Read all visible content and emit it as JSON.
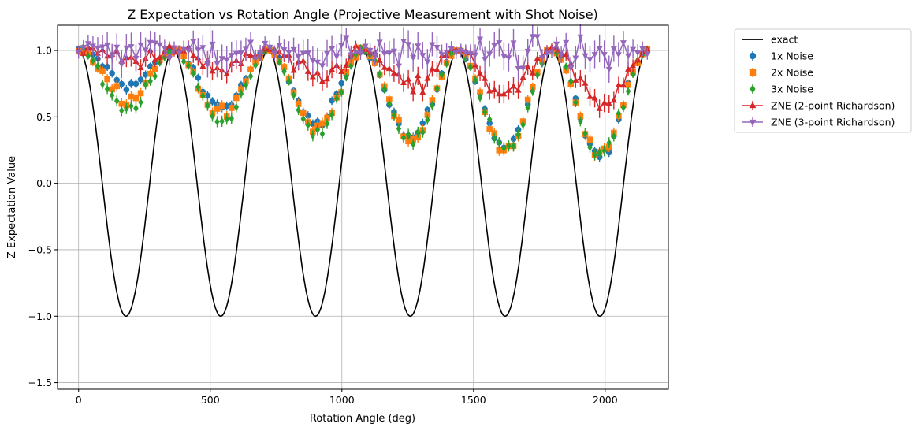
{
  "chart_data": {
    "type": "line",
    "title": "Z Expectation vs Rotation Angle (Projective Measurement with Shot Noise)",
    "xlabel": "Rotation Angle (deg)",
    "ylabel": "Z Expectation Value",
    "xlim": [
      -80,
      2240
    ],
    "ylim": [
      -1.55,
      1.19
    ],
    "xticks": [
      0,
      500,
      1000,
      1500,
      2000
    ],
    "yticks": [
      -1.5,
      -1.0,
      -0.5,
      0.0,
      0.5,
      1.0
    ],
    "xtick_labels": [
      "0",
      "500",
      "1000",
      "1500",
      "2000"
    ],
    "ytick_labels": [
      "−1.5",
      "−1.0",
      "−0.5",
      "0.0",
      "0.5",
      "1.0"
    ],
    "grid": true,
    "legend_placement": "outside-right-top",
    "x_range": [
      0,
      2160
    ],
    "points": 120,
    "series": [
      {
        "name": "exact",
        "style": "line",
        "color": "#000000",
        "model": "exact",
        "A": 1.0
      },
      {
        "name": "1x Noise",
        "style": "errorbar",
        "marker": "circle",
        "color": "#1f77b4",
        "model": "damped",
        "A": 0.85,
        "decay": 0.00073
      },
      {
        "name": "2x Noise",
        "style": "errorbar",
        "marker": "square",
        "color": "#ff7f0e",
        "model": "damped",
        "A": 0.72,
        "decay": 0.00062
      },
      {
        "name": "3x Noise",
        "style": "errorbar",
        "marker": "diamond",
        "color": "#2ca02c",
        "model": "damped",
        "A": 0.62,
        "decay": 0.00056
      },
      {
        "name": "ZNE (2-point Richardson)",
        "style": "line-errorbar",
        "marker": "triangle-up",
        "color": "#d62728",
        "model": "damped",
        "A": 0.97,
        "decay": 0.00024
      },
      {
        "name": "ZNE (3-point Richardson)",
        "style": "line-errorbar",
        "marker": "triangle-down",
        "color": "#9467bd",
        "model": "damped",
        "A": 1.02,
        "decay": 3e-05
      }
    ]
  }
}
